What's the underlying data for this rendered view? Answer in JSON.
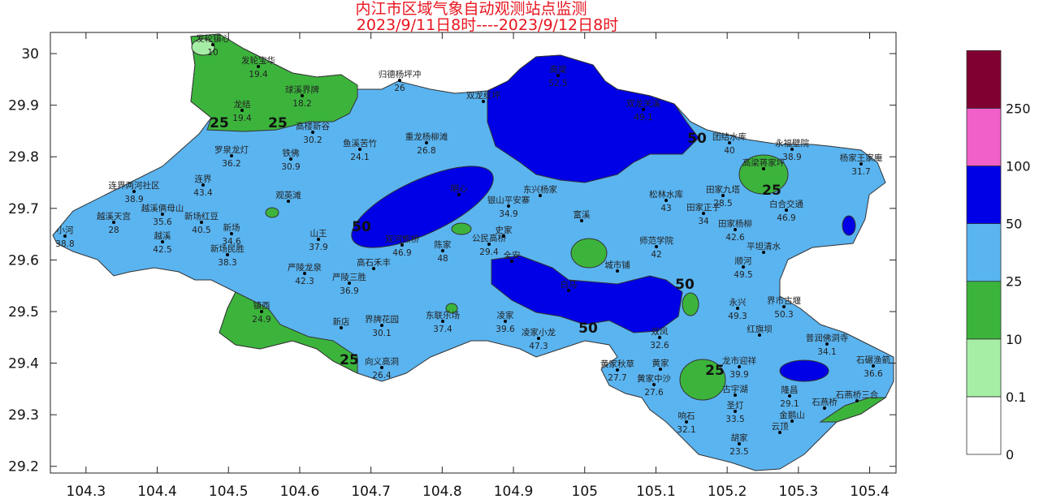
{
  "title": "内江市区域气象自动观测站点监测",
  "subtitle": "2023/9/11日8时----2023/9/12日8时",
  "x_axis": {
    "lim": [
      104.25,
      105.437
    ],
    "ticks": [
      104.3,
      104.4,
      104.5,
      104.6,
      104.7,
      104.8,
      104.9,
      105,
      105.1,
      105.2,
      105.3,
      105.4
    ]
  },
  "y_axis": {
    "lim": [
      29.187,
      30.041
    ],
    "ticks": [
      29.2,
      29.3,
      29.4,
      29.5,
      29.6,
      29.7,
      29.8,
      29.9,
      30
    ]
  },
  "legend": {
    "levels": [
      0,
      0.1,
      10,
      25,
      50,
      100,
      250
    ],
    "colors": [
      "#ffffff",
      "#a6eea6",
      "#3cb43c",
      "#5ab4f0",
      "#0000e6",
      "#f060c8",
      "#800032"
    ]
  },
  "contour_labels": [
    25,
    25,
    25,
    25,
    25,
    50,
    50,
    50,
    50
  ],
  "stations": [
    {
      "name": "发轮镇心",
      "value": 10
    },
    {
      "name": "发轮宝华",
      "value": 19.4
    },
    {
      "name": "球溪界牌",
      "value": 18.2
    },
    {
      "name": "龙结",
      "value": 19.4
    },
    {
      "name": "高楼新谷",
      "value": 30.2
    },
    {
      "name": "归德杨坪冲",
      "value": 26
    },
    {
      "name": "双龙红坪"
    },
    {
      "name": "高梁",
      "value": 52.5
    },
    {
      "name": "双龙关溪",
      "value": 49.1
    },
    {
      "name": "团结水库",
      "value": 40
    },
    {
      "name": "永福壁院",
      "value": 38.9
    },
    {
      "name": "杨家王家庵",
      "value": 31.7
    },
    {
      "name": "高梁蒋家坪"
    },
    {
      "name": "罗泉龙灯",
      "value": 36.2
    },
    {
      "name": "铁佛",
      "value": 30.9
    },
    {
      "name": "鱼溪苦竹",
      "value": 24.1
    },
    {
      "name": "重龙杨柳滩",
      "value": 26.8
    },
    {
      "name": "连界两河社区",
      "value": 38.9
    },
    {
      "name": "连界",
      "value": 43.4
    },
    {
      "name": "越溪天宫",
      "value": 28
    },
    {
      "name": "越溪俩母山",
      "value": 35.6
    },
    {
      "name": "新场红豆",
      "value": 40.5
    },
    {
      "name": "观英滩"
    },
    {
      "name": "小河",
      "value": 38.8
    },
    {
      "name": "越溪",
      "value": 42.5
    },
    {
      "name": "新场",
      "value": 34.6
    },
    {
      "name": "新场民胜",
      "value": 38.3
    },
    {
      "name": "山王",
      "value": 37.9
    },
    {
      "name": "双河熊桥",
      "value": 46.9
    },
    {
      "name": "陈家",
      "value": 48
    },
    {
      "name": "公民高桥",
      "value": 29.4
    },
    {
      "name": "严陵龙泉",
      "value": 42.3
    },
    {
      "name": "高石禾丰"
    },
    {
      "name": "严陵三胜",
      "value": 36.9
    },
    {
      "name": "镇西",
      "value": 24.9
    },
    {
      "name": "新店"
    },
    {
      "name": "界牌花园",
      "value": 30.1
    },
    {
      "name": "东联乐场",
      "value": 37.4
    },
    {
      "name": "凌家",
      "value": 39.6
    },
    {
      "name": "凌家小龙",
      "value": 47.3
    },
    {
      "name": "向义高洞",
      "value": 26.4
    },
    {
      "name": "双凤",
      "value": 32.6
    },
    {
      "name": "永兴",
      "value": 49.3
    },
    {
      "name": "界市古堰",
      "value": 50.3
    },
    {
      "name": "红旗坝"
    },
    {
      "name": "普润佛洞寺",
      "value": 34.1
    },
    {
      "name": "黄家秋草",
      "value": 27.7
    },
    {
      "name": "黄家"
    },
    {
      "name": "龙市迎祥",
      "value": 39.9
    },
    {
      "name": "石碾渔箭",
      "value": 36.6
    },
    {
      "name": "黄家中沙",
      "value": 27.6
    },
    {
      "name": "古宇湖"
    },
    {
      "name": "隆昌",
      "value": 29.1
    },
    {
      "name": "石燕桥"
    },
    {
      "name": "石燕桥三合"
    },
    {
      "name": "响石",
      "value": 32.1
    },
    {
      "name": "圣灯",
      "value": 33.5
    },
    {
      "name": "金鹅山"
    },
    {
      "name": "云顶"
    },
    {
      "name": "胡家",
      "value": 23.5
    },
    {
      "name": "松林水库",
      "value": 43
    },
    {
      "name": "田家九塔",
      "value": 28.5
    },
    {
      "name": "田家正子",
      "value": 34
    },
    {
      "name": "田家杨柳",
      "value": 42.6
    },
    {
      "name": "白合交通",
      "value": 46.9
    },
    {
      "name": "师范学院",
      "value": 42
    },
    {
      "name": "平坦清水"
    },
    {
      "name": "顺河",
      "value": 49.5
    },
    {
      "name": "城市铺"
    },
    {
      "name": "白马"
    },
    {
      "name": "银山平安寨",
      "value": 34.9
    },
    {
      "name": "明心"
    },
    {
      "name": "史家"
    },
    {
      "name": "全安"
    },
    {
      "name": "东兴杨家"
    },
    {
      "name": "富溪"
    }
  ]
}
